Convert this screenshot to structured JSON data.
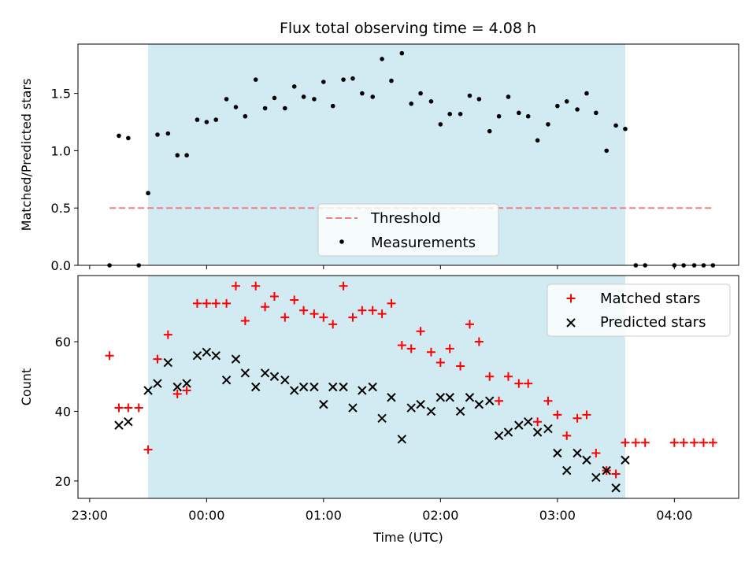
{
  "title": "Flux total observing time = 4.08 h",
  "chart_data": [
    {
      "type": "scatter",
      "ylabel": "Matched/Predicted stars",
      "xlabel": "",
      "x_unit": "hours relative to 00:00 UTC",
      "xlim": [
        -1.1,
        4.55
      ],
      "ylim": [
        0,
        1.93
      ],
      "yticks": [
        0.0,
        0.5,
        1.0,
        1.5
      ],
      "ytick_labels": [
        "0.0",
        "0.5",
        "1.0",
        "1.5"
      ],
      "shaded_span": [
        -0.5,
        3.58
      ],
      "shade_color": "#add8e6",
      "threshold": {
        "name": "Threshold",
        "value": 0.5,
        "x_range": [
          -0.83,
          4.33
        ],
        "color": "#f08080"
      },
      "legend": {
        "location": "lower-center",
        "entries": [
          "Threshold",
          "Measurements"
        ]
      },
      "series": [
        {
          "name": "Measurements",
          "marker": "dot",
          "color": "#000000",
          "x": [
            -0.83,
            -0.75,
            -0.67,
            -0.58,
            -0.5,
            -0.42,
            -0.33,
            -0.25,
            -0.17,
            -0.08,
            0.0,
            0.08,
            0.17,
            0.25,
            0.33,
            0.42,
            0.5,
            0.58,
            0.67,
            0.75,
            0.83,
            0.92,
            1.0,
            1.08,
            1.17,
            1.25,
            1.33,
            1.42,
            1.5,
            1.58,
            1.67,
            1.75,
            1.83,
            1.92,
            2.0,
            2.08,
            2.17,
            2.25,
            2.33,
            2.42,
            2.5,
            2.58,
            2.67,
            2.75,
            2.83,
            2.92,
            3.0,
            3.08,
            3.17,
            3.25,
            3.33,
            3.42,
            3.5,
            3.58,
            3.67,
            3.75,
            4.0,
            4.08,
            4.17,
            4.25,
            4.33
          ],
          "y": [
            0.0,
            1.13,
            1.11,
            0.0,
            0.63,
            1.14,
            1.15,
            0.96,
            0.96,
            1.27,
            1.25,
            1.27,
            1.45,
            1.38,
            1.3,
            1.62,
            1.37,
            1.46,
            1.37,
            1.56,
            1.47,
            1.45,
            1.6,
            1.39,
            1.62,
            1.63,
            1.5,
            1.47,
            1.8,
            1.61,
            1.85,
            1.41,
            1.5,
            1.43,
            1.23,
            1.32,
            1.32,
            1.48,
            1.45,
            1.17,
            1.3,
            1.47,
            1.33,
            1.3,
            1.09,
            1.23,
            1.39,
            1.43,
            1.36,
            1.5,
            1.33,
            1.0,
            1.22,
            1.19,
            0.0,
            0.0,
            0.0,
            0.0,
            0.0,
            0.0,
            0.0
          ]
        }
      ]
    },
    {
      "type": "scatter",
      "ylabel": "Count",
      "xlabel": "Time (UTC)",
      "x_unit": "hours relative to 00:00 UTC",
      "xlim": [
        -1.1,
        4.55
      ],
      "ylim": [
        15,
        79
      ],
      "yticks": [
        20,
        40,
        60
      ],
      "ytick_labels": [
        "20",
        "40",
        "60"
      ],
      "xticks": [
        -1,
        0,
        1,
        2,
        3,
        4
      ],
      "xtick_labels": [
        "23:00",
        "00:00",
        "01:00",
        "02:00",
        "03:00",
        "04:00"
      ],
      "shaded_span": [
        -0.5,
        3.58
      ],
      "shade_color": "#add8e6",
      "legend": {
        "location": "top-right",
        "entries": [
          "Matched stars",
          "Predicted stars"
        ]
      },
      "series": [
        {
          "name": "Matched stars",
          "marker": "plus",
          "color": "#ff0000",
          "x": [
            -0.83,
            -0.75,
            -0.67,
            -0.58,
            -0.5,
            -0.42,
            -0.33,
            -0.25,
            -0.17,
            -0.08,
            0.0,
            0.08,
            0.17,
            0.25,
            0.33,
            0.42,
            0.5,
            0.58,
            0.67,
            0.75,
            0.83,
            0.92,
            1.0,
            1.08,
            1.17,
            1.25,
            1.33,
            1.42,
            1.5,
            1.58,
            1.67,
            1.75,
            1.83,
            1.92,
            2.0,
            2.08,
            2.17,
            2.25,
            2.33,
            2.42,
            2.5,
            2.58,
            2.67,
            2.75,
            2.83,
            2.92,
            3.0,
            3.08,
            3.17,
            3.25,
            3.33,
            3.42,
            3.5,
            3.58,
            3.67,
            3.75,
            4.0,
            4.08,
            4.17,
            4.25,
            4.33
          ],
          "y": [
            56,
            41,
            41,
            41,
            29,
            55,
            62,
            45,
            46,
            71,
            71,
            71,
            71,
            76,
            66,
            76,
            70,
            73,
            67,
            72,
            69,
            68,
            67,
            65,
            76,
            67,
            69,
            69,
            68,
            71,
            59,
            58,
            63,
            57,
            54,
            58,
            53,
            65,
            60,
            50,
            43,
            50,
            48,
            48,
            37,
            43,
            39,
            33,
            38,
            39,
            28,
            23,
            22,
            31,
            31,
            31,
            31,
            31,
            31,
            31,
            31
          ]
        },
        {
          "name": "Predicted stars",
          "marker": "x",
          "color": "#000000",
          "x": [
            -0.75,
            -0.67,
            -0.5,
            -0.42,
            -0.33,
            -0.25,
            -0.17,
            -0.08,
            0.0,
            0.08,
            0.17,
            0.25,
            0.33,
            0.42,
            0.5,
            0.58,
            0.67,
            0.75,
            0.83,
            0.92,
            1.0,
            1.08,
            1.17,
            1.25,
            1.33,
            1.42,
            1.5,
            1.58,
            1.67,
            1.75,
            1.83,
            1.92,
            2.0,
            2.08,
            2.17,
            2.25,
            2.33,
            2.42,
            2.5,
            2.58,
            2.67,
            2.75,
            2.83,
            2.92,
            3.0,
            3.08,
            3.17,
            3.25,
            3.33,
            3.42,
            3.5,
            3.58
          ],
          "y": [
            36,
            37,
            46,
            48,
            54,
            47,
            48,
            56,
            57,
            56,
            49,
            55,
            51,
            47,
            51,
            50,
            49,
            46,
            47,
            47,
            42,
            47,
            47,
            41,
            46,
            47,
            38,
            44,
            32,
            41,
            42,
            40,
            44,
            44,
            40,
            44,
            42,
            43,
            33,
            34,
            36,
            37,
            34,
            35,
            28,
            23,
            28,
            26,
            21,
            23,
            18,
            26
          ]
        }
      ]
    }
  ]
}
